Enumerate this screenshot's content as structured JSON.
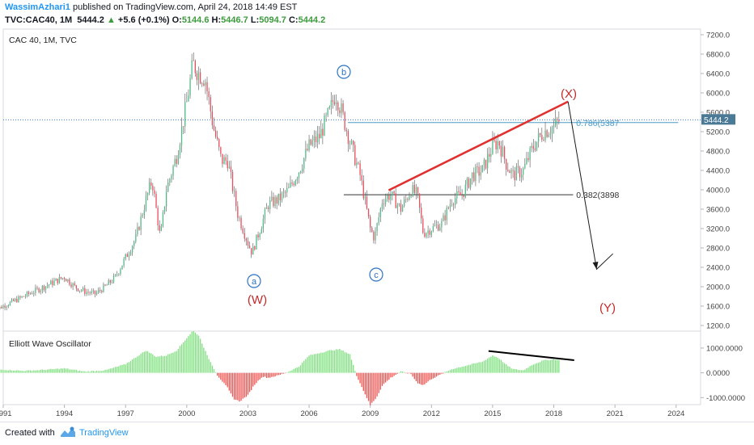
{
  "header": {
    "author": "WassimAzhari1",
    "published_text": "published on TradingView.com, April 24, 2018 14:49 EST",
    "symbol": "TVC:CAC40, 1M",
    "last": "5444.2",
    "change_arrow": "▲",
    "change": "+5.6 (+0.1%)",
    "open_label": "O:",
    "open": "5144.6",
    "high_label": "H:",
    "high": "5446.7",
    "low_label": "L:",
    "low": "5094.7",
    "close_label": "C:",
    "close": "5444.2"
  },
  "chart_data": [
    {
      "type": "candlestick",
      "title": "CAC 40, 1M, TVC",
      "x_ticks": [
        "1991",
        "1994",
        "1997",
        "2000",
        "2003",
        "2006",
        "2009",
        "2012",
        "2015",
        "2018",
        "2021",
        "2024"
      ],
      "x_range": [
        1991,
        2025.2
      ],
      "ylim": [
        1100,
        7300
      ],
      "y_ticks": [
        "7200.0",
        "6800.0",
        "6400.0",
        "6000.0",
        "5600.0",
        "5200.0",
        "4800.0",
        "4400.0",
        "4000.0",
        "3600.0",
        "3200.0",
        "2800.0",
        "2400.0",
        "2000.0",
        "1600.0",
        "1200.0"
      ],
      "series": [
        {
          "x": [
            1990.5,
            1991.0,
            1992.0,
            1993.0,
            1993.5,
            1994.0,
            1994.5,
            1995.0,
            1995.5,
            1996.0,
            1996.5,
            1997.0,
            1997.5,
            1998.0,
            1998.3,
            1998.7,
            1999.0,
            1999.5,
            2000.0,
            2000.3,
            2000.6,
            2000.9,
            2001.3,
            2001.7,
            2002.0,
            2002.5,
            2003.0,
            2003.2,
            2003.6,
            2004.0,
            2004.5,
            2005.0,
            2005.5,
            2006.0,
            2006.5,
            2007.0,
            2007.3,
            2007.6,
            2008.0,
            2008.5,
            2009.0,
            2009.2,
            2009.6,
            2010.0,
            2010.5,
            2011.0,
            2011.3,
            2011.6,
            2012.0,
            2012.5,
            2013.0,
            2013.5,
            2014.0,
            2014.5,
            2015.0,
            2015.3,
            2015.7,
            2016.0,
            2016.5,
            2017.0,
            2017.5,
            2018.0,
            2018.3
          ],
          "y": [
            1500,
            1600,
            1800,
            2000,
            2100,
            2200,
            2000,
            1900,
            1850,
            2000,
            2200,
            2600,
            3000,
            3800,
            4200,
            3000,
            4000,
            4700,
            5800,
            6600,
            6400,
            6300,
            5300,
            4600,
            4600,
            3500,
            2900,
            2700,
            3200,
            3700,
            3800,
            4000,
            4400,
            4900,
            5100,
            5600,
            6000,
            5600,
            5000,
            4300,
            3200,
            3000,
            3800,
            3900,
            3600,
            4000,
            3900,
            3100,
            3200,
            3300,
            3800,
            3900,
            4300,
            4400,
            4900,
            5000,
            4500,
            4300,
            4400,
            4900,
            5200,
            5300,
            5444
          ]
        }
      ],
      "annotations": [
        {
          "text": "a",
          "group": "circle"
        },
        {
          "text": "b",
          "group": "circle"
        },
        {
          "text": "c",
          "group": "circle"
        },
        {
          "text": "(W)",
          "group": "red"
        },
        {
          "text": "(X)",
          "group": "red"
        },
        {
          "text": "(Y)",
          "group": "red"
        }
      ],
      "fib_levels": [
        {
          "label": "0.786(5387",
          "value": 5387
        },
        {
          "label": "0.382(3898",
          "value": 3898
        }
      ],
      "trendline": {
        "from": [
          2009.9,
          3990
        ],
        "to": [
          2018.7,
          5820
        ]
      },
      "projection": [
        [
          2018.7,
          5820
        ],
        [
          2020.1,
          2360
        ],
        [
          2020.9,
          2680
        ]
      ],
      "last_price_label": "5444.2",
      "colors": {
        "up": "#53b987",
        "down": "#eb4d5c",
        "trendline": "#e03030",
        "fib_786": "#4a9cc8",
        "fib_382": "#333333",
        "annotation_red": "#c62828",
        "annotation_circle": "#2a73c2"
      }
    },
    {
      "type": "bar",
      "title": "Elliott Wave Oscillator",
      "ylim": [
        -1250,
        1650
      ],
      "y_ticks": [
        "1000.0000",
        "0.0000",
        "-1000.0000"
      ],
      "series": [
        {
          "x": [
            1990.5,
            1992.0,
            1993.0,
            1994.0,
            1995.0,
            1996.0,
            1997.0,
            1998.0,
            1998.5,
            1999.0,
            1999.5,
            2000.0,
            2000.3,
            2000.6,
            2001.0,
            2001.5,
            2002.0,
            2002.3,
            2002.6,
            2003.0,
            2003.3,
            2003.7,
            2004.0,
            2004.5,
            2005.0,
            2005.5,
            2006.0,
            2006.5,
            2007.0,
            2007.5,
            2008.0,
            2008.3,
            2008.6,
            2009.0,
            2009.3,
            2009.6,
            2010.0,
            2010.5,
            2011.0,
            2011.3,
            2011.6,
            2012.0,
            2012.5,
            2013.0,
            2013.5,
            2014.0,
            2014.5,
            2015.0,
            2015.3,
            2015.7,
            2016.0,
            2016.5,
            2017.0,
            2017.5,
            2018.0,
            2018.3
          ],
          "y": [
            150,
            80,
            120,
            180,
            50,
            100,
            350,
            900,
            650,
            700,
            900,
            1400,
            1700,
            1500,
            700,
            -100,
            -600,
            -1050,
            -1150,
            -900,
            -500,
            -150,
            -200,
            -100,
            50,
            250,
            700,
            800,
            900,
            950,
            750,
            -50,
            -600,
            -1300,
            -1000,
            -500,
            -200,
            50,
            -50,
            -400,
            -500,
            -250,
            -50,
            150,
            250,
            350,
            450,
            700,
            600,
            300,
            150,
            100,
            350,
            500,
            550,
            500
          ]
        }
      ],
      "divergence_line": {
        "from": [
          2014.8,
          880
        ],
        "to": [
          2019.0,
          510
        ]
      },
      "colors": {
        "positive": "#7ee07e",
        "negative": "#ef5350",
        "divergence": "#000000"
      }
    }
  ],
  "footer": {
    "created_with": "Created with",
    "brand": "TradingView"
  }
}
